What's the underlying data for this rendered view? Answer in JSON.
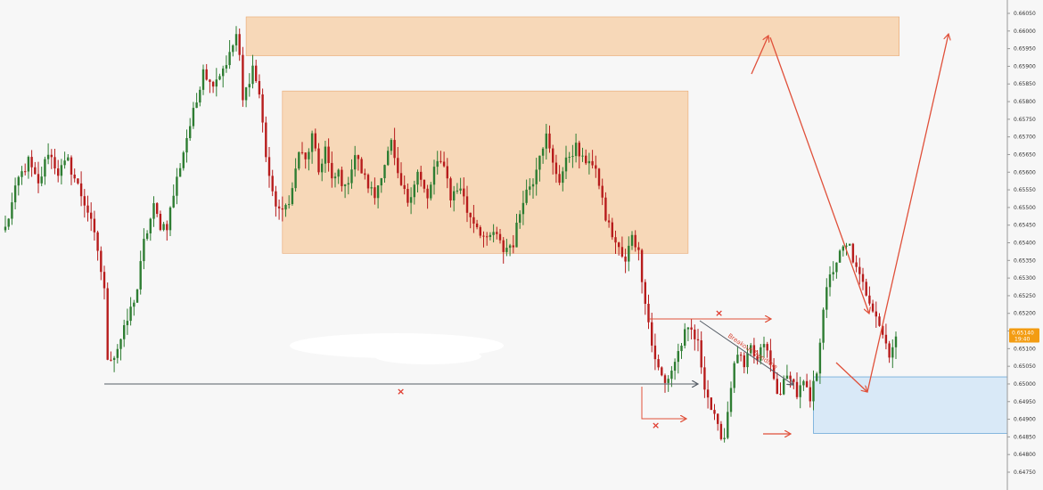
{
  "chart_data": {
    "type": "candlestick",
    "ylim": [
      0.6475,
      0.6605
    ],
    "y_ticks": [
      "0.66050",
      "0.66000",
      "0.65950",
      "0.65900",
      "0.65850",
      "0.65800",
      "0.65750",
      "0.65700",
      "0.65650",
      "0.65600",
      "0.65550",
      "0.65500",
      "0.65450",
      "0.65400",
      "0.65350",
      "0.65300",
      "0.65250",
      "0.65200",
      "0.65150",
      "0.65100",
      "0.65050",
      "0.65000",
      "0.64950",
      "0.64900",
      "0.64850",
      "0.64800",
      "0.64750"
    ],
    "y_tick_values": [
      0.6605,
      0.66,
      0.6595,
      0.659,
      0.6585,
      0.658,
      0.6575,
      0.657,
      0.6565,
      0.656,
      0.6555,
      0.655,
      0.6545,
      0.654,
      0.6535,
      0.653,
      0.6525,
      0.652,
      0.6515,
      0.651,
      0.6505,
      0.65,
      0.6495,
      0.649,
      0.6485,
      0.648,
      0.6475
    ],
    "current_price": "0.65140",
    "current_price_value": 0.6514,
    "countdown": "19:40",
    "grid": false,
    "colors": {
      "bull": "#2e7d32",
      "bear": "#b71c1c",
      "zone_orange": "#f7d2ad",
      "zone_orange_border": "#e8a770",
      "zone_blue": "#d9e9f7",
      "zone_blue_border": "#6aa8d8",
      "arrow_red": "#e0503a",
      "line_gray": "#555c66",
      "price_tag": "#f39c12"
    },
    "keypoints": [
      [
        0,
        0.6544
      ],
      [
        4,
        0.6558
      ],
      [
        7,
        0.6563
      ],
      [
        10,
        0.6556
      ],
      [
        13,
        0.6566
      ],
      [
        16,
        0.656
      ],
      [
        19,
        0.6563
      ],
      [
        22,
        0.6556
      ],
      [
        25,
        0.6549
      ],
      [
        28,
        0.6538
      ],
      [
        30,
        0.6526
      ],
      [
        31,
        0.6508
      ],
      [
        33,
        0.6508
      ],
      [
        36,
        0.6515
      ],
      [
        40,
        0.6527
      ],
      [
        42,
        0.654
      ],
      [
        45,
        0.655
      ],
      [
        47,
        0.6545
      ],
      [
        49,
        0.6545
      ],
      [
        52,
        0.6558
      ],
      [
        55,
        0.657
      ],
      [
        58,
        0.658
      ],
      [
        60,
        0.659
      ],
      [
        62,
        0.6585
      ],
      [
        65,
        0.6588
      ],
      [
        68,
        0.6593
      ],
      [
        70,
        0.6599
      ],
      [
        71,
        0.6592
      ],
      [
        72,
        0.658
      ],
      [
        75,
        0.659
      ],
      [
        77,
        0.6582
      ],
      [
        79,
        0.6565
      ],
      [
        81,
        0.6553
      ],
      [
        84,
        0.6548
      ],
      [
        87,
        0.6555
      ],
      [
        89,
        0.6566
      ],
      [
        91,
        0.6563
      ],
      [
        93,
        0.657
      ],
      [
        95,
        0.656
      ],
      [
        97,
        0.6567
      ],
      [
        99,
        0.6557
      ],
      [
        101,
        0.656
      ],
      [
        103,
        0.6555
      ],
      [
        106,
        0.6565
      ],
      [
        109,
        0.6558
      ],
      [
        112,
        0.6553
      ],
      [
        114,
        0.656
      ],
      [
        117,
        0.6568
      ],
      [
        119,
        0.6558
      ],
      [
        122,
        0.6552
      ],
      [
        125,
        0.656
      ],
      [
        128,
        0.6552
      ],
      [
        130,
        0.6561
      ],
      [
        133,
        0.6563
      ],
      [
        135,
        0.6553
      ],
      [
        138,
        0.6556
      ],
      [
        140,
        0.6549
      ],
      [
        143,
        0.6545
      ],
      [
        146,
        0.654
      ],
      [
        148,
        0.6543
      ],
      [
        151,
        0.6538
      ],
      [
        154,
        0.654
      ],
      [
        157,
        0.6553
      ],
      [
        160,
        0.6558
      ],
      [
        162,
        0.6566
      ],
      [
        164,
        0.657
      ],
      [
        166,
        0.6562
      ],
      [
        168,
        0.6558
      ],
      [
        171,
        0.6565
      ],
      [
        173,
        0.6567
      ],
      [
        175,
        0.6563
      ],
      [
        177,
        0.6564
      ],
      [
        180,
        0.6557
      ],
      [
        182,
        0.6547
      ],
      [
        185,
        0.654
      ],
      [
        188,
        0.6534
      ],
      [
        190,
        0.6543
      ],
      [
        192,
        0.6537
      ],
      [
        194,
        0.6524
      ],
      [
        196,
        0.6511
      ],
      [
        198,
        0.6504
      ],
      [
        200,
        0.65
      ],
      [
        202,
        0.6504
      ],
      [
        204,
        0.6509
      ],
      [
        206,
        0.6514
      ],
      [
        208,
        0.6515
      ],
      [
        210,
        0.6511
      ],
      [
        212,
        0.65
      ],
      [
        214,
        0.6493
      ],
      [
        216,
        0.6487
      ],
      [
        218,
        0.6485
      ],
      [
        220,
        0.65
      ],
      [
        222,
        0.6509
      ],
      [
        224,
        0.6504
      ],
      [
        226,
        0.651
      ],
      [
        228,
        0.6506
      ],
      [
        230,
        0.6512
      ],
      [
        232,
        0.6505
      ],
      [
        234,
        0.6497
      ],
      [
        236,
        0.65
      ],
      [
        238,
        0.6503
      ],
      [
        240,
        0.6497
      ],
      [
        242,
        0.65
      ],
      [
        244,
        0.6495
      ],
      [
        246,
        0.6504
      ],
      [
        248,
        0.6522
      ],
      [
        250,
        0.653
      ],
      [
        252,
        0.6535
      ],
      [
        254,
        0.6538
      ],
      [
        256,
        0.6539
      ],
      [
        258,
        0.6532
      ],
      [
        260,
        0.6528
      ],
      [
        262,
        0.6524
      ],
      [
        264,
        0.652
      ],
      [
        266,
        0.6514
      ],
      [
        268,
        0.6509
      ],
      [
        270,
        0.6513
      ]
    ],
    "annotations": {
      "orange_zones": [
        {
          "from_index": 73,
          "to_index": 271,
          "price_high": 0.6604,
          "price_low": 0.6593
        },
        {
          "from_index": 84,
          "to_index": 207,
          "price_high": 0.6583,
          "price_low": 0.6537
        }
      ],
      "blue_zone": {
        "from_index": 245,
        "to_index": 323,
        "price_high": 0.6502,
        "price_low": 0.6486
      },
      "gray_line": {
        "from_index": 30,
        "to_index": 210,
        "price": 0.65
      },
      "break_label": "Breakout Trendline"
    }
  }
}
